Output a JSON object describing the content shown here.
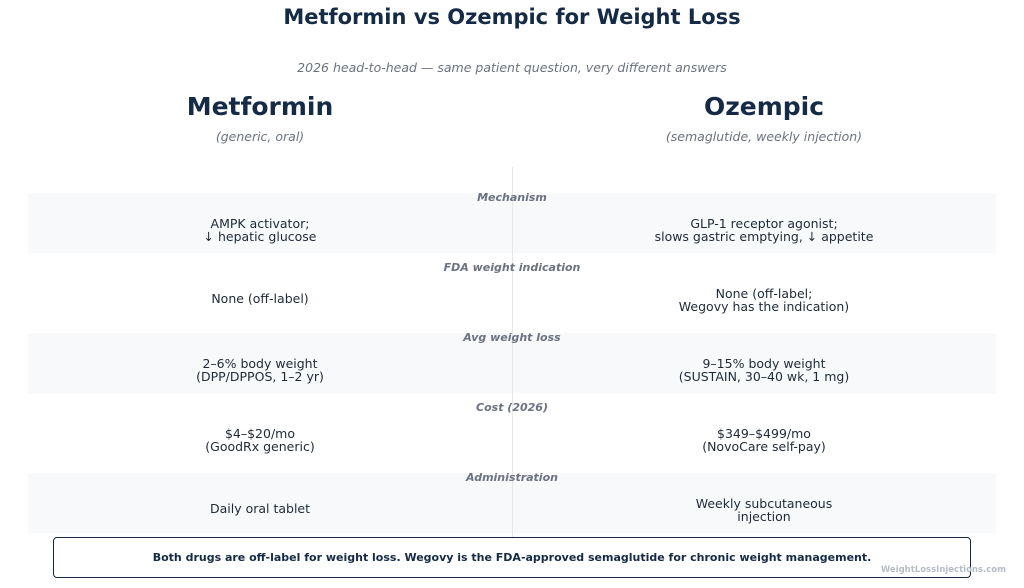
{
  "title": "Metformin vs Ozempic for Weight Loss",
  "subtitle": "2026 head-to-head — same patient question, very different answers",
  "columns": {
    "left": {
      "name": "Metformin",
      "sub": "(generic, oral)"
    },
    "right": {
      "name": "Ozempic",
      "sub": "(semaglutide, weekly injection)"
    }
  },
  "rows": [
    {
      "label": "Mechanism",
      "left": "AMPK activator;\n↓ hepatic glucose",
      "right": "GLP-1 receptor agonist;\nslows gastric emptying, ↓ appetite"
    },
    {
      "label": "FDA weight indication",
      "left": "None (off-label)",
      "right": "None (off-label;\nWegovy has the indication)"
    },
    {
      "label": "Avg weight loss",
      "left": "2–6% body weight\n(DPP/DPPOS, 1–2 yr)",
      "right": "9–15% body weight\n(SUSTAIN, 30–40 wk, 1 mg)"
    },
    {
      "label": "Cost (2026)",
      "left": "$4–$20/mo\n(GoodRx generic)",
      "right": "$349–$499/mo\n(NovoCare self-pay)"
    },
    {
      "label": "Administration",
      "left": "Daily oral tablet",
      "right": "Weekly subcutaneous\ninjection"
    }
  ],
  "footer": "Both drugs are off-label for weight loss. Wegovy is the FDA-approved semaglutide for chronic weight management.",
  "watermark": "WeightLossInjections.com",
  "colors": {
    "navy": "#142a45",
    "muted": "#6b7280",
    "band": "#f8f9fb"
  }
}
